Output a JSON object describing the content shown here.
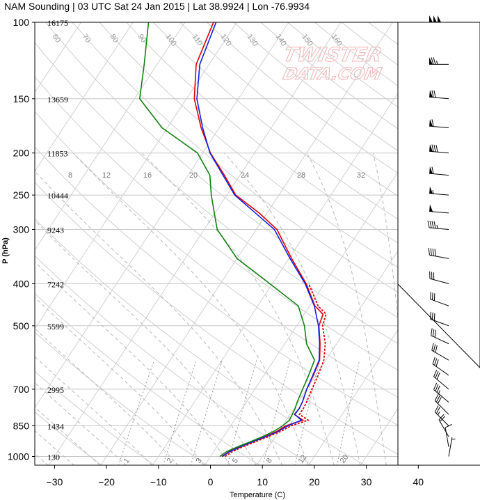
{
  "title": "NAM Sounding | 03 UTC Sat 24 Jan 2015 | Lat 38.9924 | Lon -76.9934",
  "watermark": {
    "line1": "TWISTER",
    "line2": "DATA.COM",
    "color": "#f2b0b0"
  },
  "chart_data": {
    "type": "skew-t",
    "xlabel": "Temperature (C)",
    "ylabel": "P (hPa)",
    "x_range": [
      -35,
      45
    ],
    "p_range": [
      1050,
      100
    ],
    "pressure_ticks": [
      100,
      150,
      200,
      250,
      300,
      400,
      500,
      700,
      850,
      1000
    ],
    "temperature_ticks": [
      -30,
      -20,
      -10,
      0,
      10,
      20,
      30,
      40
    ],
    "heights": [
      {
        "p": 100,
        "label": "16175"
      },
      {
        "p": 150,
        "label": "13659"
      },
      {
        "p": 200,
        "label": "11853"
      },
      {
        "p": 250,
        "label": "10444"
      },
      {
        "p": 300,
        "label": "9243"
      },
      {
        "p": 400,
        "label": "7242"
      },
      {
        "p": 500,
        "label": "5599"
      },
      {
        "p": 700,
        "label": "2995"
      },
      {
        "p": 850,
        "label": "1434"
      },
      {
        "p": 1000,
        "label": "130"
      }
    ],
    "mixing_ratio_labels": [
      "1",
      "2",
      "3",
      "5",
      "8",
      "12",
      "20"
    ],
    "isotherm_labels": [
      "60",
      "70",
      "80",
      "90",
      "100",
      "110",
      "120",
      "130",
      "140",
      "150",
      "160"
    ],
    "theta_e_labels": [
      "8",
      "12",
      "16",
      "20",
      "24",
      "28",
      "32"
    ],
    "series": [
      {
        "role": "temperature",
        "color": "#e00000",
        "points": [
          [
            1000,
            2.2
          ],
          [
            975,
            3.0
          ],
          [
            950,
            4.5
          ],
          [
            925,
            6.2
          ],
          [
            900,
            8.0
          ],
          [
            875,
            9.6
          ],
          [
            850,
            10.6
          ],
          [
            825,
            13.2
          ],
          [
            800,
            10.8
          ],
          [
            775,
            11.0
          ],
          [
            750,
            10.8
          ],
          [
            700,
            10.0
          ],
          [
            650,
            9.5
          ],
          [
            600,
            8.8
          ],
          [
            550,
            6.8
          ],
          [
            500,
            4.3
          ],
          [
            470,
            3.6
          ],
          [
            450,
            1.0
          ],
          [
            400,
            -3.5
          ],
          [
            350,
            -9.5
          ],
          [
            300,
            -16.0
          ],
          [
            275,
            -21.5
          ],
          [
            250,
            -28.3
          ],
          [
            225,
            -33.0
          ],
          [
            200,
            -38.5
          ],
          [
            175,
            -43.5
          ],
          [
            150,
            -48.5
          ],
          [
            125,
            -52.5
          ],
          [
            100,
            -54.5
          ]
        ]
      },
      {
        "role": "virtual-temperature",
        "color": "#1020e0",
        "points": [
          [
            1000,
            2.3
          ],
          [
            975,
            3.1
          ],
          [
            950,
            4.6
          ],
          [
            925,
            6.3
          ],
          [
            900,
            8.2
          ],
          [
            875,
            9.9
          ],
          [
            850,
            11.0
          ],
          [
            825,
            12.9
          ],
          [
            800,
            10.9
          ],
          [
            775,
            11.0
          ],
          [
            750,
            10.8
          ],
          [
            700,
            10.0
          ],
          [
            650,
            9.4
          ],
          [
            600,
            8.7
          ],
          [
            550,
            6.7
          ],
          [
            500,
            4.2
          ],
          [
            450,
            0.9
          ],
          [
            400,
            -3.7
          ],
          [
            350,
            -9.8
          ],
          [
            300,
            -16.5
          ],
          [
            250,
            -28.5
          ],
          [
            200,
            -38.6
          ],
          [
            175,
            -43.2
          ],
          [
            150,
            -48.0
          ],
          [
            125,
            -51.8
          ],
          [
            100,
            -54.0
          ]
        ]
      },
      {
        "role": "dewpoint",
        "color": "#108010",
        "points": [
          [
            1000,
            1.8
          ],
          [
            975,
            2.5
          ],
          [
            950,
            4.0
          ],
          [
            925,
            5.8
          ],
          [
            900,
            7.5
          ],
          [
            875,
            9.0
          ],
          [
            850,
            10.0
          ],
          [
            825,
            10.6
          ],
          [
            800,
            10.4
          ],
          [
            775,
            10.2
          ],
          [
            750,
            9.8
          ],
          [
            700,
            9.2
          ],
          [
            650,
            8.6
          ],
          [
            600,
            7.8
          ],
          [
            550,
            4.2
          ],
          [
            500,
            1.5
          ],
          [
            450,
            -2.2
          ],
          [
            400,
            -10.5
          ],
          [
            350,
            -20.0
          ],
          [
            300,
            -27.5
          ],
          [
            250,
            -33.0
          ],
          [
            225,
            -35.8
          ],
          [
            200,
            -41.0
          ],
          [
            175,
            -51.0
          ],
          [
            150,
            -59.0
          ],
          [
            125,
            -62.5
          ],
          [
            100,
            -67.0
          ]
        ]
      },
      {
        "role": "parcel",
        "color": "#e00000",
        "dashed": true,
        "points": [
          [
            1000,
            2.8
          ],
          [
            975,
            3.6
          ],
          [
            950,
            5.0
          ],
          [
            925,
            6.8
          ],
          [
            900,
            8.6
          ],
          [
            875,
            10.4
          ],
          [
            850,
            11.6
          ],
          [
            825,
            14.2
          ],
          [
            800,
            11.8
          ],
          [
            775,
            11.8
          ],
          [
            750,
            11.6
          ],
          [
            700,
            11.0
          ],
          [
            650,
            10.4
          ],
          [
            600,
            9.6
          ],
          [
            550,
            7.8
          ],
          [
            500,
            5.0
          ],
          [
            470,
            4.2
          ],
          [
            450,
            1.6
          ],
          [
            400,
            -3.0
          ]
        ]
      }
    ],
    "wind_barbs": [
      {
        "p": 100,
        "dir": 270,
        "kt": 150
      },
      {
        "p": 125,
        "dir": 270,
        "kt": 75
      },
      {
        "p": 150,
        "dir": 265,
        "kt": 70
      },
      {
        "p": 175,
        "dir": 265,
        "kt": 60
      },
      {
        "p": 200,
        "dir": 265,
        "kt": 80
      },
      {
        "p": 225,
        "dir": 265,
        "kt": 60
      },
      {
        "p": 250,
        "dir": 265,
        "kt": 55
      },
      {
        "p": 275,
        "dir": 265,
        "kt": 50
      },
      {
        "p": 300,
        "dir": 265,
        "kt": 45
      },
      {
        "p": 350,
        "dir": 260,
        "kt": 40
      },
      {
        "p": 400,
        "dir": 255,
        "kt": 30
      },
      {
        "p": 450,
        "dir": 250,
        "kt": 30
      },
      {
        "p": 500,
        "dir": 250,
        "kt": 30
      },
      {
        "p": 550,
        "dir": 245,
        "kt": 30
      },
      {
        "p": 600,
        "dir": 240,
        "kt": 30
      },
      {
        "p": 650,
        "dir": 235,
        "kt": 30
      },
      {
        "p": 700,
        "dir": 230,
        "kt": 30
      },
      {
        "p": 750,
        "dir": 230,
        "kt": 35
      },
      {
        "p": 800,
        "dir": 225,
        "kt": 30
      },
      {
        "p": 850,
        "dir": 225,
        "kt": 25
      },
      {
        "p": 900,
        "dir": 210,
        "kt": 20
      },
      {
        "p": 950,
        "dir": 190,
        "kt": 10
      },
      {
        "p": 1000,
        "dir": 170,
        "kt": 5
      }
    ],
    "grid": true
  }
}
